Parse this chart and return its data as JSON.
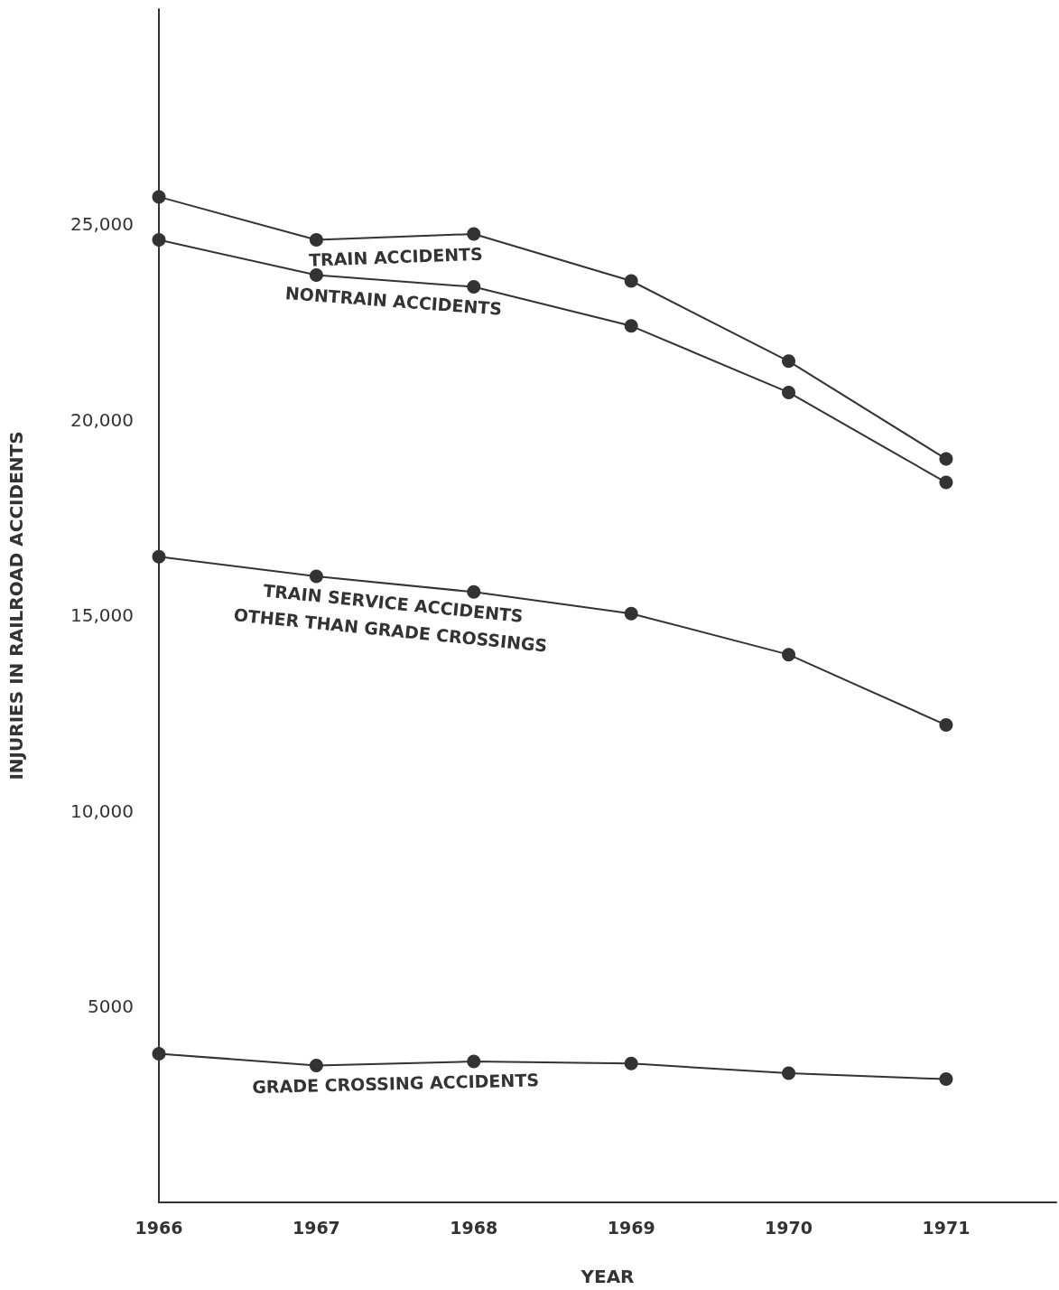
{
  "chart_data": {
    "type": "line",
    "xlabel": "YEAR",
    "ylabel": "INJURIES IN RAILROAD ACCIDENTS",
    "x": [
      1966,
      1967,
      1968,
      1969,
      1970,
      1971
    ],
    "series": [
      {
        "name": "TRAIN ACCIDENTS",
        "color": "#333333",
        "values": [
          25700,
          24600,
          24750,
          23550,
          21500,
          19000
        ]
      },
      {
        "name": "NONTRAIN ACCIDENTS",
        "color": "#333333",
        "values": [
          24600,
          23700,
          23400,
          22400,
          20700,
          18400
        ]
      },
      {
        "name": "TRAIN SERVICE ACCIDENTS\nOTHER THAN GRADE CROSSINGS",
        "color": "#333333",
        "values": [
          16500,
          16000,
          15600,
          15050,
          14000,
          12200
        ]
      },
      {
        "name": "GRADE CROSSING ACCIDENTS",
        "color": "#333333",
        "values": [
          3800,
          3500,
          3600,
          3550,
          3300,
          3150
        ]
      }
    ],
    "xlim": [
      1966,
      1971.7
    ],
    "xticks": [
      1966,
      1967,
      1968,
      1969,
      1970,
      1971
    ],
    "ylim": [
      0,
      30500
    ],
    "yticks": [
      5000,
      {
        "value": 10000,
        "label": "10,000"
      },
      {
        "value": 15000,
        "label": "15,000"
      },
      {
        "value": 20000,
        "label": "20,000"
      },
      {
        "value": 25000,
        "label": "25,000"
      }
    ],
    "grid": false,
    "legend": false,
    "marker": "circle",
    "line_style": "solid"
  }
}
